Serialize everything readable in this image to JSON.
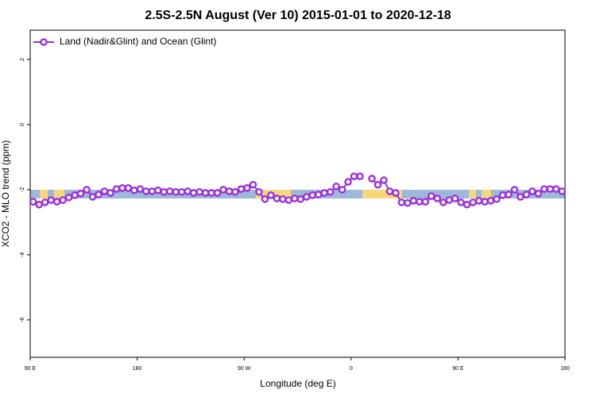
{
  "chart_data": {
    "type": "line",
    "title": "2.5S-2.5N August (Ver 10)   2015-01-01 to 2020-12-18",
    "x_label": "Longitude (deg E)",
    "y_label": "XCO2 - MLO trend (ppm)",
    "legend": "top-left",
    "xlim": [
      90,
      540
    ],
    "xticks": [
      {
        "value": 90,
        "label": "90 E"
      },
      180,
      {
        "value": 270,
        "label": "90 W"
      },
      {
        "value": 360,
        "label": "0"
      },
      {
        "value": 450,
        "label": "90 E"
      },
      {
        "value": 540,
        "label": "180"
      }
    ],
    "ylim": [
      -7.15,
      2.9
    ],
    "yticks": [
      2,
      0,
      -2,
      -4,
      -6
    ],
    "series": [
      {
        "name": "Land (Nadir&Glint) and Ocean (Glint)",
        "color": "#9b2fe0",
        "x": [
          92.5,
          97.5,
          102.5,
          107.5,
          112.5,
          117.5,
          122.5,
          127.5,
          132.5,
          137.5,
          142.5,
          147.5,
          152.5,
          157.5,
          162.5,
          167.5,
          172.5,
          177.5,
          182.5,
          187.5,
          192.5,
          197.5,
          202.5,
          207.5,
          212.5,
          217.5,
          222.5,
          227.5,
          232.5,
          237.5,
          242.5,
          247.5,
          252.5,
          257.5,
          262.5,
          267.5,
          272.5,
          277.5,
          282.5,
          287.5,
          292.5,
          297.5,
          302.5,
          307.5,
          312.5,
          317.5,
          322.5,
          327.5,
          332.5,
          337.5,
          342.5,
          347.5,
          352.5,
          357.5,
          362.5,
          367.5,
          372.5,
          377.5,
          382.5,
          387.5,
          392.5,
          397.5,
          402.5,
          407.5,
          412.5,
          417.5,
          422.5,
          427.5,
          432.5,
          437.5,
          442.5,
          447.5,
          452.5,
          457.5,
          462.5,
          467.5,
          472.5,
          477.5,
          482.5,
          487.5,
          492.5,
          497.5,
          502.5,
          507.5,
          512.5,
          517.5,
          522.5,
          527.5,
          532.5,
          537.5
        ],
        "values": [
          -2.37,
          -2.46,
          -2.39,
          -2.32,
          -2.37,
          -2.32,
          -2.24,
          -2.17,
          -2.12,
          -2.0,
          -2.22,
          -2.15,
          -2.05,
          -2.1,
          -1.98,
          -1.95,
          -1.95,
          -2.02,
          -1.98,
          -2.05,
          -2.05,
          -2.02,
          -2.07,
          -2.05,
          -2.07,
          -2.07,
          -2.05,
          -2.1,
          -2.07,
          -2.1,
          -2.1,
          -2.1,
          -2.0,
          -2.05,
          -2.07,
          -1.98,
          -1.95,
          -1.85,
          -2.07,
          -2.29,
          -2.17,
          -2.27,
          -2.29,
          -2.32,
          -2.27,
          -2.29,
          -2.22,
          -2.17,
          -2.15,
          -2.1,
          -2.07,
          -1.9,
          -2.0,
          -1.76,
          -1.59,
          -1.59,
          null,
          -1.66,
          -1.85,
          -1.71,
          -2.05,
          -2.1,
          -2.39,
          -2.41,
          -2.34,
          -2.37,
          -2.37,
          -2.2,
          -2.27,
          -2.39,
          -2.32,
          -2.27,
          -2.39,
          -2.46,
          -2.39,
          -2.34,
          -2.37,
          -2.34,
          -2.29,
          -2.17,
          -2.15,
          -2.0,
          -2.22,
          -2.15,
          -2.05,
          -2.12,
          -1.98,
          -1.98,
          -1.98,
          -2.05
        ]
      }
    ]
  }
}
